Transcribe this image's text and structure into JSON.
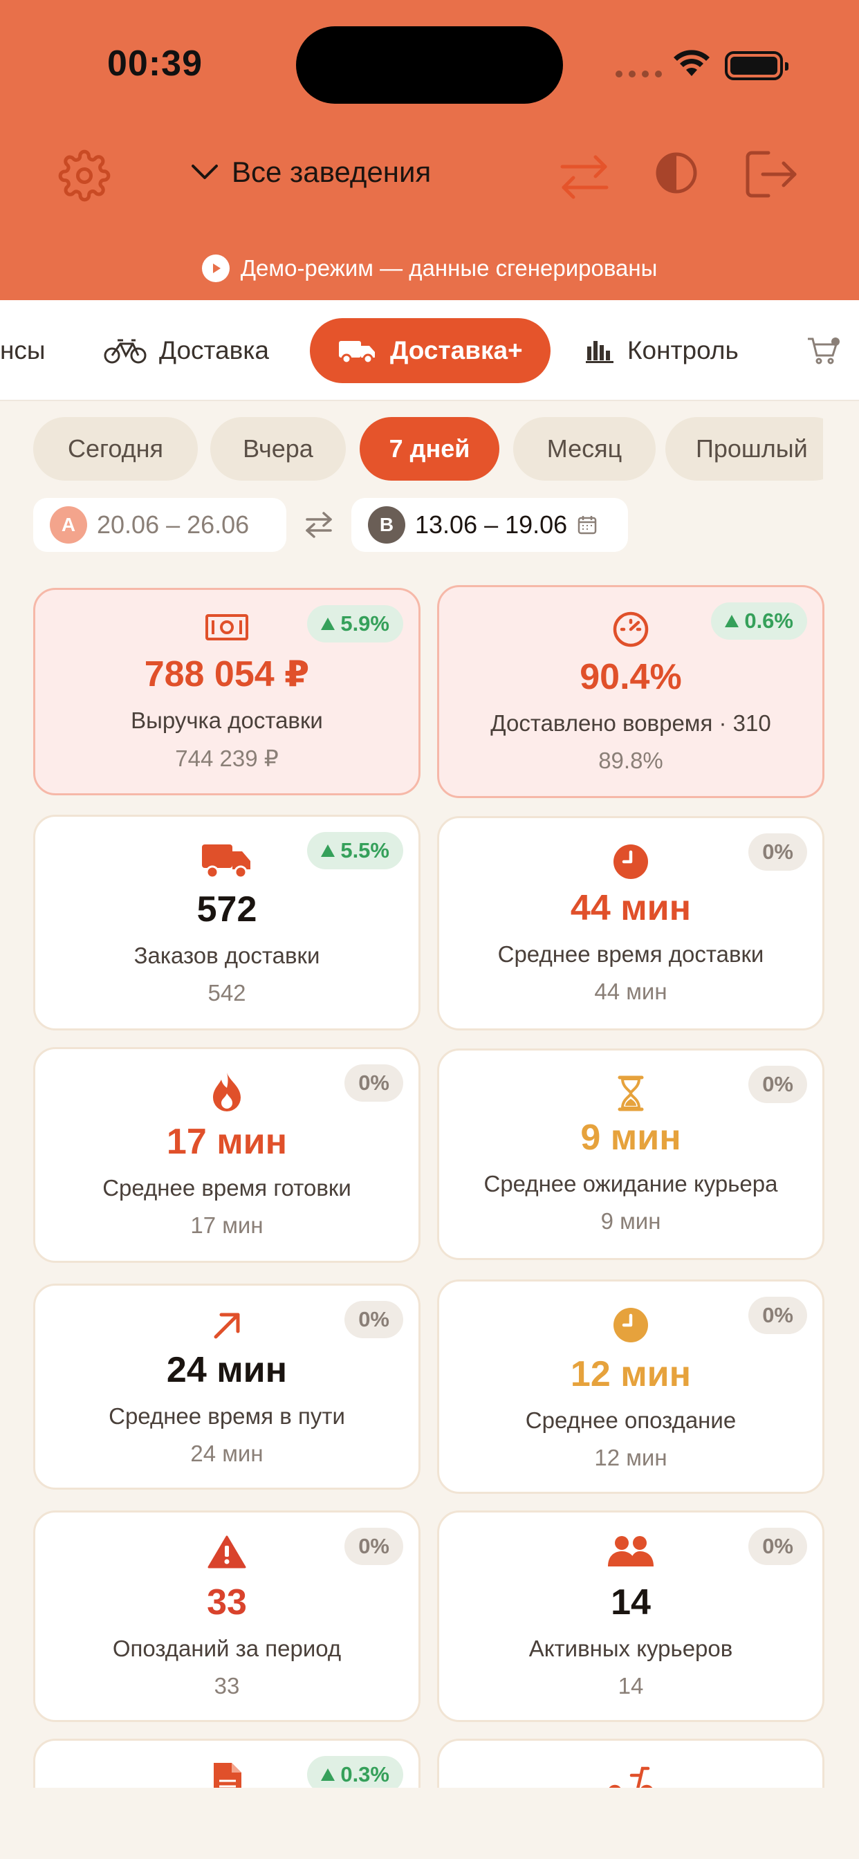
{
  "status_bar": {
    "time": "00:39"
  },
  "header": {
    "venue_selector": "Все заведения",
    "demo_banner": "Демо-режим — данные сгенерированы",
    "accent_color": "#e8704a"
  },
  "tabs": [
    {
      "label": "нсы",
      "icon": "none"
    },
    {
      "label": "Доставка",
      "icon": "bicycle-icon"
    },
    {
      "label": "Доставка+",
      "icon": "truck-icon",
      "active": true
    },
    {
      "label": "Контроль",
      "icon": "bar-chart-icon"
    },
    {
      "label": "",
      "icon": "cart-icon"
    }
  ],
  "periods": [
    {
      "label": "Сегодня"
    },
    {
      "label": "Вчера"
    },
    {
      "label": "7 дней",
      "active": true
    },
    {
      "label": "Месяц"
    },
    {
      "label": "Прошлый"
    }
  ],
  "ranges": {
    "a": {
      "badge": "A",
      "text": "20.06 – 26.06"
    },
    "b": {
      "badge": "B",
      "text": "13.06 – 19.06"
    }
  },
  "cards": [
    {
      "value": "788 054 ₽",
      "label": "Выручка доставки",
      "prev": "744 239 ₽",
      "delta": "5.9%",
      "trend": "up",
      "icon": "cash-icon"
    },
    {
      "value": "90.4%",
      "label": "Доставлено вовремя · 310",
      "prev": "89.8%",
      "delta": "0.6%",
      "trend": "up",
      "icon": "speedometer-icon"
    },
    {
      "value": "572",
      "label": "Заказов доставки",
      "prev": "542",
      "delta": "5.5%",
      "trend": "up",
      "icon": "truck-icon"
    },
    {
      "value": "44 мин",
      "label": "Среднее время доставки",
      "prev": "44 мин",
      "delta": "0%",
      "trend": "flat",
      "icon": "clock-icon"
    },
    {
      "value": "17 мин",
      "label": "Среднее время готовки",
      "prev": "17 мин",
      "delta": "0%",
      "trend": "flat",
      "icon": "flame-icon"
    },
    {
      "value": "9 мин",
      "label": "Среднее ожидание курьера",
      "prev": "9 мин",
      "delta": "0%",
      "trend": "flat",
      "icon": "hourglass-icon"
    },
    {
      "value": "24 мин",
      "label": "Среднее время в пути",
      "prev": "24 мин",
      "delta": "0%",
      "trend": "flat",
      "icon": "arrow-up-right-icon"
    },
    {
      "value": "12 мин",
      "label": "Среднее опоздание",
      "prev": "12 мин",
      "delta": "0%",
      "trend": "flat",
      "icon": "clock-icon"
    },
    {
      "value": "33",
      "label": "Опозданий за период",
      "prev": "33",
      "delta": "0%",
      "trend": "flat",
      "icon": "warning-icon"
    },
    {
      "value": "14",
      "label": "Активных курьеров",
      "prev": "14",
      "delta": "0%",
      "trend": "flat",
      "icon": "people-icon"
    },
    {
      "value": "",
      "label": "",
      "prev": "",
      "delta": "0.3%",
      "trend": "up",
      "icon": "document-icon"
    },
    {
      "value": "",
      "label": "",
      "prev": "",
      "delta": "",
      "trend": "none",
      "icon": "scooter-icon"
    }
  ]
}
